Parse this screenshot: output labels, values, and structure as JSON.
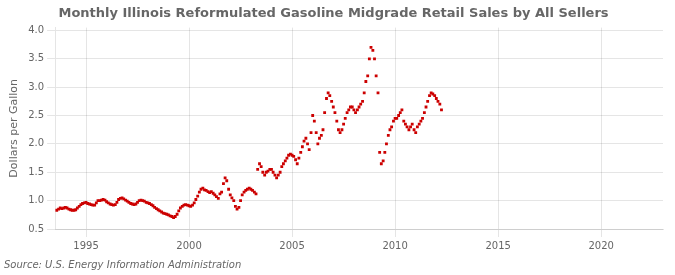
{
  "chart_data": {
    "type": "scatter",
    "title": "Monthly Illinois Reformulated Gasoline Midgrade Retail Sales by All Sellers",
    "y_label": "Dollars per Gallon",
    "annotations": [
      "Source: U.S. Energy Information Administration"
    ],
    "xlim": [
      1993.5,
      2023.0
    ],
    "ylim": [
      0.5,
      4.05
    ],
    "xticks": [
      1995,
      2000,
      2005,
      2010,
      2015,
      2020
    ],
    "yticks": [
      0.5,
      {
        "value": 1.0,
        "label": "1.0"
      },
      1.5,
      {
        "value": 2.0,
        "label": "2.0"
      },
      2.5,
      {
        "value": 3.0,
        "label": "3.0"
      },
      3.5,
      {
        "value": 4.0,
        "label": "4.0"
      }
    ],
    "grid": true,
    "color": "#CC0000",
    "marker": "square",
    "x": [
      1993.58,
      1993.67,
      1993.75,
      1993.83,
      1993.92,
      1994.0,
      1994.08,
      1994.17,
      1994.25,
      1994.33,
      1994.42,
      1994.5,
      1994.58,
      1994.67,
      1994.75,
      1994.83,
      1994.92,
      1995.0,
      1995.08,
      1995.17,
      1995.25,
      1995.33,
      1995.42,
      1995.5,
      1995.58,
      1995.67,
      1995.75,
      1995.83,
      1995.92,
      1996.0,
      1996.08,
      1996.17,
      1996.25,
      1996.33,
      1996.42,
      1996.5,
      1996.58,
      1996.67,
      1996.75,
      1996.83,
      1996.92,
      1997.0,
      1997.08,
      1997.17,
      1997.25,
      1997.33,
      1997.42,
      1997.5,
      1997.58,
      1997.67,
      1997.75,
      1997.83,
      1997.92,
      1998.0,
      1998.08,
      1998.17,
      1998.25,
      1998.33,
      1998.42,
      1998.5,
      1998.58,
      1998.67,
      1998.75,
      1998.83,
      1998.92,
      1999.0,
      1999.08,
      1999.17,
      1999.25,
      1999.33,
      1999.42,
      1999.5,
      1999.58,
      1999.67,
      1999.75,
      1999.83,
      1999.92,
      2000.0,
      2000.08,
      2000.17,
      2000.25,
      2000.33,
      2000.42,
      2000.5,
      2000.58,
      2000.67,
      2000.75,
      2000.83,
      2000.92,
      2001.0,
      2001.08,
      2001.17,
      2001.25,
      2001.33,
      2001.42,
      2001.5,
      2001.58,
      2001.67,
      2001.75,
      2001.83,
      2001.92,
      2002.0,
      2002.08,
      2002.17,
      2002.25,
      2002.33,
      2002.42,
      2002.5,
      2002.58,
      2002.67,
      2002.75,
      2002.83,
      2002.92,
      2003.0,
      2003.08,
      2003.17,
      2003.25,
      2003.33,
      2003.42,
      2003.5,
      2003.58,
      2003.67,
      2003.75,
      2003.83,
      2003.92,
      2004.0,
      2004.08,
      2004.17,
      2004.25,
      2004.33,
      2004.42,
      2004.5,
      2004.58,
      2004.67,
      2004.75,
      2004.83,
      2004.92,
      2005.0,
      2005.08,
      2005.17,
      2005.25,
      2005.33,
      2005.42,
      2005.5,
      2005.58,
      2005.67,
      2005.75,
      2005.83,
      2005.92,
      2006.0,
      2006.08,
      2006.17,
      2006.25,
      2006.33,
      2006.42,
      2006.5,
      2006.58,
      2006.67,
      2006.75,
      2006.83,
      2006.92,
      2007.0,
      2007.08,
      2007.17,
      2007.25,
      2007.33,
      2007.42,
      2007.5,
      2007.58,
      2007.67,
      2007.75,
      2007.83,
      2007.92,
      2008.0,
      2008.08,
      2008.17,
      2008.25,
      2008.33,
      2008.42,
      2008.5,
      2008.58,
      2008.67,
      2008.75,
      2008.83,
      2008.92,
      2009.0,
      2009.08,
      2009.17,
      2009.25,
      2009.33,
      2009.42,
      2009.5,
      2009.58,
      2009.67,
      2009.75,
      2009.83,
      2009.92,
      2010.0,
      2010.08,
      2010.17,
      2010.25,
      2010.33,
      2010.42,
      2010.5,
      2010.58,
      2010.67,
      2010.75,
      2010.83,
      2010.92,
      2011.0,
      2011.08,
      2011.17,
      2011.25,
      2011.33,
      2011.42,
      2011.5,
      2011.58,
      2011.67,
      2011.75,
      2011.83,
      2011.92,
      2012.0,
      2012.08,
      2012.17,
      2012.25
    ],
    "values": [
      0.83,
      0.85,
      0.87,
      0.86,
      0.87,
      0.88,
      0.87,
      0.85,
      0.84,
      0.83,
      0.83,
      0.84,
      0.87,
      0.9,
      0.93,
      0.95,
      0.96,
      0.97,
      0.95,
      0.94,
      0.93,
      0.92,
      0.92,
      0.96,
      1.0,
      1.0,
      1.01,
      1.02,
      1.01,
      0.98,
      0.96,
      0.94,
      0.93,
      0.92,
      0.93,
      0.97,
      1.02,
      1.04,
      1.05,
      1.03,
      1.01,
      0.99,
      0.97,
      0.95,
      0.94,
      0.93,
      0.94,
      0.97,
      1.0,
      1.01,
      1.0,
      0.99,
      0.97,
      0.96,
      0.95,
      0.93,
      0.91,
      0.88,
      0.86,
      0.84,
      0.82,
      0.8,
      0.78,
      0.77,
      0.76,
      0.75,
      0.73,
      0.72,
      0.7,
      0.72,
      0.76,
      0.82,
      0.87,
      0.9,
      0.92,
      0.93,
      0.92,
      0.91,
      0.9,
      0.92,
      0.96,
      1.02,
      1.08,
      1.15,
      1.2,
      1.22,
      1.19,
      1.18,
      1.16,
      1.14,
      1.16,
      1.13,
      1.1,
      1.07,
      1.04,
      1.12,
      1.15,
      1.3,
      1.4,
      1.35,
      1.2,
      1.1,
      1.05,
      1.0,
      0.9,
      0.85,
      0.88,
      1.0,
      1.1,
      1.15,
      1.18,
      1.2,
      1.22,
      1.2,
      1.18,
      1.15,
      1.12,
      1.55,
      1.65,
      1.6,
      1.5,
      1.45,
      1.5,
      1.52,
      1.55,
      1.55,
      1.5,
      1.45,
      1.4,
      1.45,
      1.5,
      1.6,
      1.65,
      1.7,
      1.75,
      1.8,
      1.82,
      1.8,
      1.78,
      1.72,
      1.65,
      1.75,
      1.85,
      1.95,
      2.05,
      2.1,
      2.0,
      1.9,
      2.2,
      2.5,
      2.4,
      2.2,
      2.0,
      2.1,
      2.15,
      2.25,
      2.55,
      2.8,
      2.9,
      2.85,
      2.75,
      2.65,
      2.55,
      2.4,
      2.25,
      2.2,
      2.25,
      2.35,
      2.45,
      2.55,
      2.6,
      2.65,
      2.65,
      2.6,
      2.55,
      2.6,
      2.65,
      2.7,
      2.75,
      2.9,
      3.1,
      3.2,
      3.5,
      3.7,
      3.65,
      3.5,
      3.2,
      2.9,
      1.85,
      1.65,
      1.7,
      1.85,
      2.0,
      2.15,
      2.25,
      2.3,
      2.4,
      2.45,
      2.45,
      2.5,
      2.55,
      2.6,
      2.4,
      2.35,
      2.3,
      2.25,
      2.3,
      2.35,
      2.25,
      2.2,
      2.3,
      2.35,
      2.4,
      2.45,
      2.55,
      2.65,
      2.75,
      2.85,
      2.9,
      2.88,
      2.85,
      2.8,
      2.75,
      2.7,
      2.6
    ]
  }
}
